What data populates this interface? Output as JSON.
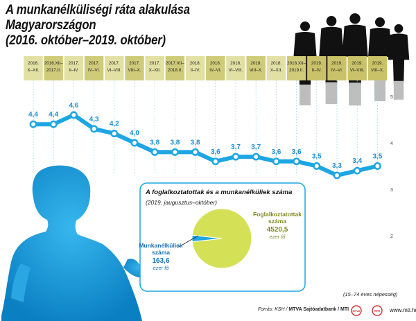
{
  "title_line1": "A munkanélküliségi ráta alakulása Magyarországon",
  "title_line2": "(2016. október–2019. október)",
  "source_prefix": "Forrás: KSH / ",
  "source_bold": "MTVA Sajtóadatbank / MTI",
  "population_note": "(15–74 éves népesség)",
  "website": "www.mti.hu",
  "chart_data": [
    {
      "type": "line",
      "categories": [
        "2016. X–XII.",
        "2016.XII– 2017.II.",
        "2017. II–IV.",
        "2017. IV–VI.",
        "2017. VI–VIII.",
        "2017. VIII–X.",
        "2017. X–XII.",
        "2017.XII– 2018.II.",
        "2018. II–IV.",
        "2018. IV–VI.",
        "2018. VI–VIII.",
        "2018. VIII–X.",
        "2018. X–XII.",
        "2018.XII– 2019.II.",
        "2019. II–IV.",
        "2019. IV–VI.",
        "2019. VI–VIII.",
        "2019. VIII–X."
      ],
      "values": [
        4.4,
        4.4,
        4.6,
        4.3,
        4.2,
        4.0,
        3.8,
        3.8,
        3.8,
        3.6,
        3.7,
        3.7,
        3.6,
        3.6,
        3.5,
        3.3,
        3.4,
        3.5
      ],
      "value_labels": [
        "4,4",
        "4,4",
        "4,6",
        "4,3",
        "4,2",
        "4,0",
        "3,8",
        "3,8",
        "3,8",
        "3,6",
        "3,7",
        "3,7",
        "3,6",
        "3,6",
        "3,5",
        "3,3",
        "3,4",
        "3,5"
      ],
      "yticks": [
        "5",
        "4",
        "3",
        "2"
      ],
      "ylim": [
        1.5,
        5.5
      ],
      "line_color": "#1ea6e3",
      "marker_color": "#ffffff"
    },
    {
      "type": "pie",
      "title": "A foglalkoztatottak és a munkanélküliek száma",
      "subtitle": "(2019. jaugusztus–október)",
      "slices": [
        {
          "name_line1": "Foglalkoztatottak",
          "name_line2": "száma",
          "value": 4520.5,
          "value_label": "4520,5",
          "unit": "ezer fő",
          "color": "#d4e157"
        },
        {
          "name_line1": "Munkanélküliek",
          "name_line2": "száma",
          "value": 163.6,
          "value_label": "163,6",
          "unit": "ezer fő",
          "color": "#1ea6e3"
        }
      ]
    }
  ],
  "colors": {
    "header_even": "#e3e0a4",
    "header_odd": "#cfcb78",
    "header_2019": "#c9c268",
    "accent_blue": "#1ea6e3",
    "employed_text": "#7d8a1e",
    "unemployed_text": "#1a6fb8"
  }
}
